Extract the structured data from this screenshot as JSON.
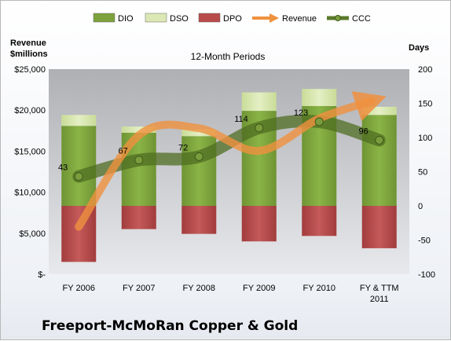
{
  "chart_data": {
    "type": "bar",
    "title": "12-Month Periods",
    "company": "Freeport-McMoRan Copper & Gold",
    "categories": [
      "FY 2006",
      "FY 2007",
      "FY 2008",
      "FY 2009",
      "FY 2010",
      "FY & TTM 2011"
    ],
    "left_axis": {
      "label_line1": "Revenue",
      "label_line2": "$millions",
      "range": [
        0,
        25000
      ],
      "ticks": [
        {
          "value": 0,
          "label": "$-"
        },
        {
          "value": 5000,
          "label": "$5,000"
        },
        {
          "value": 10000,
          "label": "$10,000"
        },
        {
          "value": 15000,
          "label": "$15,000"
        },
        {
          "value": 20000,
          "label": "$20,000"
        },
        {
          "value": 25000,
          "label": "$25,000"
        }
      ]
    },
    "right_axis": {
      "label": "Days",
      "range": [
        -100,
        200
      ],
      "ticks": [
        {
          "value": -100,
          "label": "-100"
        },
        {
          "value": -50,
          "label": "-50"
        },
        {
          "value": 0,
          "label": "0"
        },
        {
          "value": 50,
          "label": "50"
        },
        {
          "value": 100,
          "label": "100"
        },
        {
          "value": 150,
          "label": "150"
        },
        {
          "value": 200,
          "label": "200"
        }
      ]
    },
    "legend": [
      {
        "name": "DIO",
        "kind": "bar",
        "color": "#7da23c"
      },
      {
        "name": "DSO",
        "kind": "bar",
        "color": "#dbe8b4"
      },
      {
        "name": "DPO",
        "kind": "bar",
        "color": "#b84a4a"
      },
      {
        "name": "Revenue",
        "kind": "arrow",
        "color": "#f0913e"
      },
      {
        "name": "CCC",
        "kind": "line",
        "color": "#5b7a2c"
      }
    ],
    "series": [
      {
        "name": "DIO",
        "axis": "right",
        "values": [
          117,
          107,
          102,
          139,
          146,
          133
        ]
      },
      {
        "name": "DSO",
        "axis": "right",
        "values": [
          16,
          9,
          10,
          27,
          25,
          12
        ]
      },
      {
        "name": "DPO",
        "axis": "right",
        "values": [
          -82,
          -34,
          -41,
          -52,
          -44,
          -62
        ]
      },
      {
        "name": "Revenue",
        "axis": "left",
        "values": [
          5791,
          16939,
          17796,
          15040,
          18982,
          21085
        ]
      },
      {
        "name": "CCC",
        "axis": "right",
        "values": [
          43,
          67,
          72,
          114,
          123,
          96
        ]
      }
    ],
    "ccc_labels": [
      "43",
      "67",
      "72",
      "114",
      "123",
      "96"
    ],
    "legend_position": "top",
    "grid": false
  }
}
